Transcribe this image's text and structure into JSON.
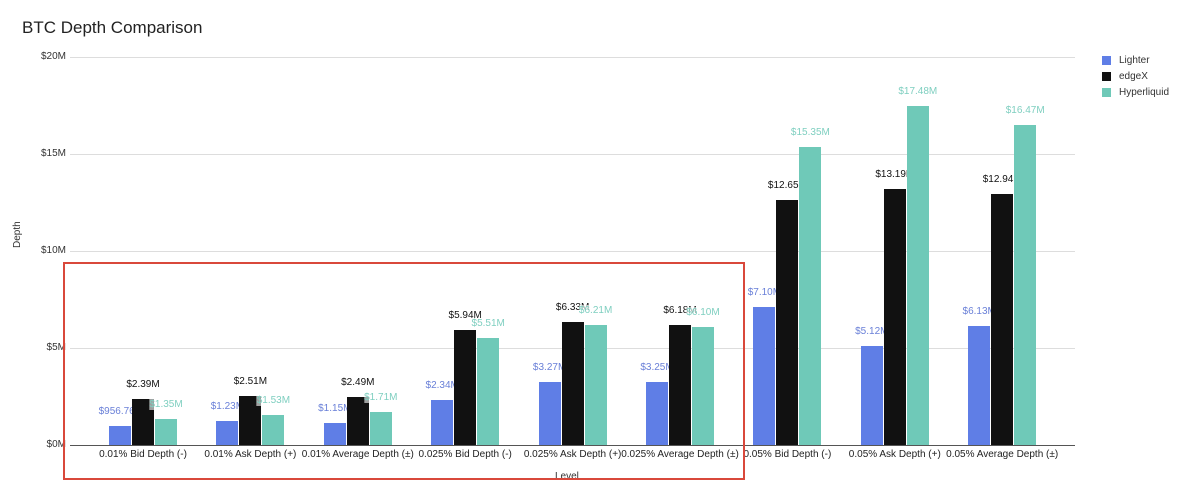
{
  "chart_data": {
    "type": "bar",
    "title": "BTC Depth Comparison",
    "xlabel": "Level",
    "ylabel": "Depth",
    "ylim": [
      0,
      20000000
    ],
    "yticks": [
      "$0M",
      "$5M",
      "$10M",
      "$15M",
      "$20M"
    ],
    "grid": true,
    "legend_position": "right",
    "categories": [
      "0.01% Bid Depth (-)",
      "0.01% Ask Depth (+)",
      "0.01% Average Depth (±)",
      "0.025% Bid Depth (-)",
      "0.025% Ask Depth (+)",
      "0.025% Average Depth (±)",
      "0.05% Bid Depth (-)",
      "0.05% Ask Depth (+)",
      "0.05% Average Depth (±)"
    ],
    "series": [
      {
        "name": "Lighter",
        "color": "#5f7ee6",
        "label_color": "#6a80d8",
        "values": [
          956760,
          1230000,
          1150000,
          2340000,
          3270000,
          3250000,
          7100000,
          5120000,
          6130000
        ],
        "labels": [
          "$956.76K",
          "$1.23M",
          "$1.15M",
          "$2.34M",
          "$3.27M",
          "$3.25M",
          "$7.10M",
          "$5.12M",
          "$6.13M"
        ]
      },
      {
        "name": "edgeX",
        "color": "#111111",
        "label_color": "#111111",
        "values": [
          2390000,
          2510000,
          2490000,
          5940000,
          6330000,
          6180000,
          12650000,
          13190000,
          12940000
        ],
        "labels": [
          "$2.39M",
          "$2.51M",
          "$2.49M",
          "$5.94M",
          "$6.33M",
          "$6.18M",
          "$12.65M",
          "$13.19M",
          "$12.94M"
        ]
      },
      {
        "name": "Hyperliquid",
        "color": "#6fc9b8",
        "label_color": "#7fcfc0",
        "values": [
          1350000,
          1530000,
          1710000,
          5510000,
          6210000,
          6100000,
          15350000,
          17480000,
          16470000
        ],
        "labels": [
          "$1.35M",
          "$1.53M",
          "$1.71M",
          "$5.51M",
          "$6.21M",
          "$6.10M",
          "$15.35M",
          "$17.48M",
          "$16.47M"
        ]
      }
    ],
    "annotations": [
      {
        "type": "highlight-box",
        "color": "#d9483b",
        "covers_categories": [
          0,
          1,
          2,
          3,
          4,
          5
        ]
      }
    ]
  }
}
